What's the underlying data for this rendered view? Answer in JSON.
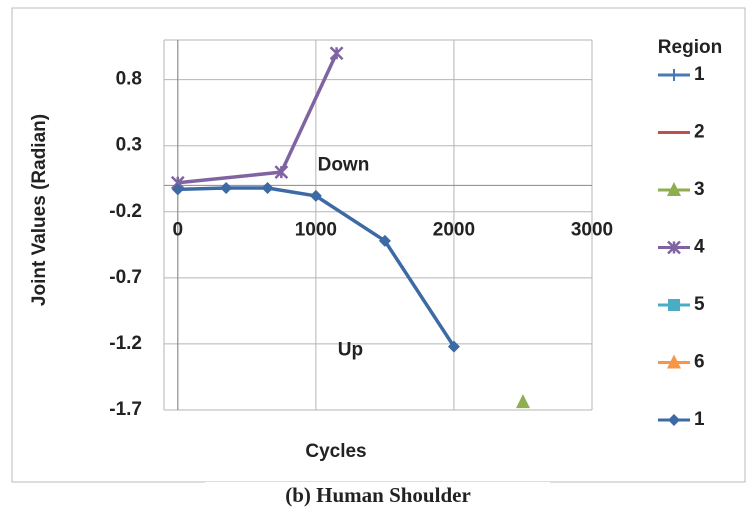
{
  "chart_data": {
    "type": "line",
    "y_label": "Joint Values (Radian)",
    "x_label": "Cycles",
    "legend_title": "Region",
    "caption": "(b) Human Shoulder",
    "xlim": [
      -100,
      3000
    ],
    "xticks": [
      0,
      1000,
      2000,
      3000
    ],
    "ylim": [
      -1.7,
      1.1
    ],
    "yticks": [
      -1.7,
      -1.2,
      -0.7,
      -0.2,
      0.3,
      0.8
    ],
    "grid": true,
    "annotations": [
      {
        "text": "Down",
        "x": 1200,
        "y": 0.15
      },
      {
        "text": "Up",
        "x": 1250,
        "y": -1.25
      }
    ],
    "series": [
      {
        "name": "1",
        "color": "#4a7ab5",
        "marker": "plus",
        "x": [],
        "values": []
      },
      {
        "name": "2",
        "color": "#c0504d",
        "marker": "none",
        "x": [],
        "values": []
      },
      {
        "name": "3",
        "color": "#8fae4f",
        "marker": "triangle",
        "x": [
          2500
        ],
        "values": [
          -1.64
        ]
      },
      {
        "name": "4",
        "color": "#8064a2",
        "marker": "star",
        "x": [
          0,
          750,
          1150
        ],
        "values": [
          0.02,
          0.1,
          1.0
        ]
      },
      {
        "name": "5",
        "color": "#4bacc6",
        "marker": "square",
        "x": [],
        "values": []
      },
      {
        "name": "6",
        "color": "#f79646",
        "marker": "triangle",
        "x": [],
        "values": []
      },
      {
        "name": "1",
        "color": "#3c6aa5",
        "marker": "diamond",
        "x": [
          0,
          350,
          650,
          1000,
          1500,
          2000
        ],
        "values": [
          -0.03,
          -0.02,
          -0.02,
          -0.08,
          -0.42,
          -1.22
        ]
      }
    ]
  }
}
